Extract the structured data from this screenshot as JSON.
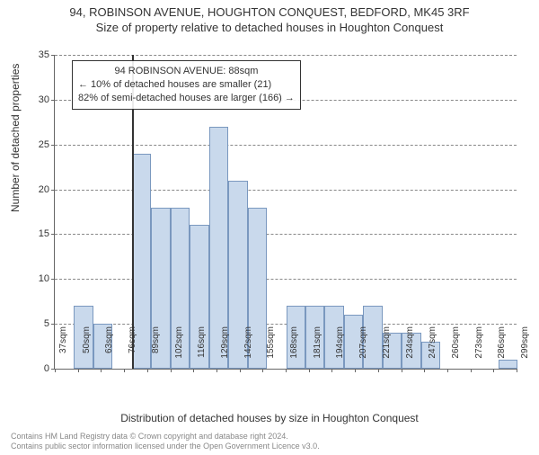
{
  "title": "94, ROBINSON AVENUE, HOUGHTON CONQUEST, BEDFORD, MK45 3RF",
  "subtitle": "Size of property relative to detached houses in Houghton Conquest",
  "yaxis_label": "Number of detached properties",
  "xaxis_label": "Distribution of detached houses by size in Houghton Conquest",
  "chart": {
    "type": "histogram",
    "ylim": [
      0,
      35
    ],
    "ytick_step": 5,
    "bar_fill": "#c9d9ec",
    "bar_stroke": "#7a98bf",
    "grid_color": "#888888",
    "axis_color": "#666666",
    "background": "#ffffff",
    "xticks": [
      "37sqm",
      "50sqm",
      "63sqm",
      "76sqm",
      "89sqm",
      "102sqm",
      "116sqm",
      "129sqm",
      "142sqm",
      "155sqm",
      "168sqm",
      "181sqm",
      "194sqm",
      "207sqm",
      "221sqm",
      "234sqm",
      "247sqm",
      "260sqm",
      "273sqm",
      "286sqm",
      "299sqm"
    ],
    "values": [
      0,
      7,
      5,
      0,
      24,
      18,
      18,
      16,
      27,
      21,
      18,
      0,
      7,
      7,
      7,
      6,
      7,
      4,
      4,
      3,
      0,
      0,
      0,
      1
    ],
    "marker_between_index": 3,
    "label_fontsize": 11,
    "title_fontsize": 13
  },
  "info_box": {
    "line1": "94 ROBINSON AVENUE: 88sqm",
    "line2": "← 10% of detached houses are smaller (21)",
    "line3": "82% of semi-detached houses are larger (166) →"
  },
  "credit": {
    "line1": "Contains HM Land Registry data © Crown copyright and database right 2024.",
    "line2": "Contains public sector information licensed under the Open Government Licence v3.0."
  }
}
